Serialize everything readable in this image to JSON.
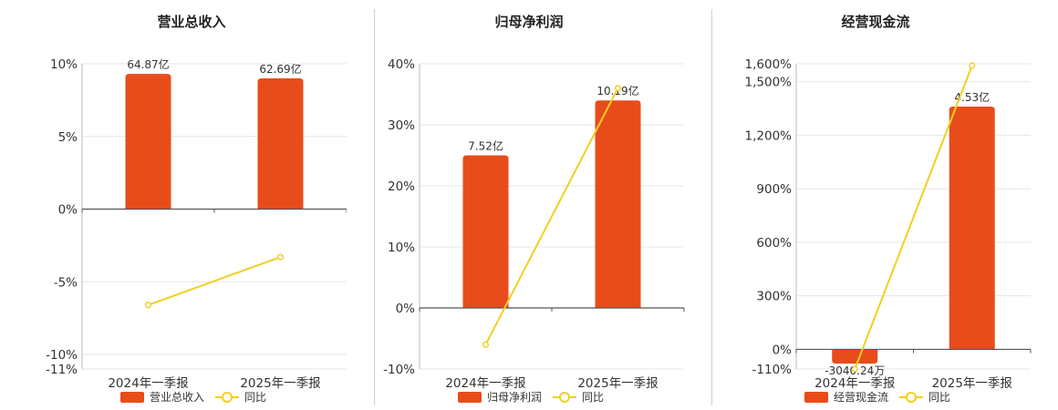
{
  "legend_labels": {
    "yoy": "同比"
  },
  "chart_data": [
    {
      "type": "bar",
      "title": "营业总收入",
      "categories": [
        "2024年一季报",
        "2025年一季报"
      ],
      "bar_series": {
        "name": "营业总收入",
        "value_labels": [
          "64.87亿",
          "62.69亿"
        ],
        "heights_pct": [
          9.3,
          9.0
        ]
      },
      "line_series": {
        "name": "同比",
        "values": [
          -6.6,
          -3.3
        ]
      },
      "yticks": [
        10,
        5,
        0,
        -5,
        -10,
        -11
      ],
      "ytick_labels": [
        "10%",
        "5%",
        "0%",
        "-5%",
        "-10%",
        "-11%"
      ],
      "ylim": [
        -11,
        10
      ]
    },
    {
      "type": "bar",
      "title": "归母净利润",
      "categories": [
        "2024年一季报",
        "2025年一季报"
      ],
      "bar_series": {
        "name": "归母净利润",
        "value_labels": [
          "7.52亿",
          "10.19亿"
        ],
        "heights_pct": [
          25,
          34
        ]
      },
      "line_series": {
        "name": "同比",
        "values": [
          -6,
          36
        ]
      },
      "yticks": [
        40,
        30,
        20,
        10,
        0,
        -10
      ],
      "ytick_labels": [
        "40%",
        "30%",
        "20%",
        "10%",
        "0%",
        "-10%"
      ],
      "ylim": [
        -10,
        40
      ]
    },
    {
      "type": "bar",
      "title": "经营现金流",
      "categories": [
        "2024年一季报",
        "2025年一季报"
      ],
      "bar_series": {
        "name": "经营现金流",
        "value_labels": [
          "-3040.24万",
          "4.53亿"
        ],
        "heights_pct": [
          -80,
          1360
        ]
      },
      "line_series": {
        "name": "同比",
        "values": [
          -110,
          1590
        ]
      },
      "yticks": [
        1600,
        1500,
        1200,
        900,
        600,
        300,
        0,
        -110
      ],
      "ytick_labels": [
        "1,600%",
        "1,500%",
        "1,200%",
        "900%",
        "600%",
        "300%",
        "0%",
        "-110%"
      ],
      "ylim": [
        -110,
        1600
      ]
    }
  ]
}
